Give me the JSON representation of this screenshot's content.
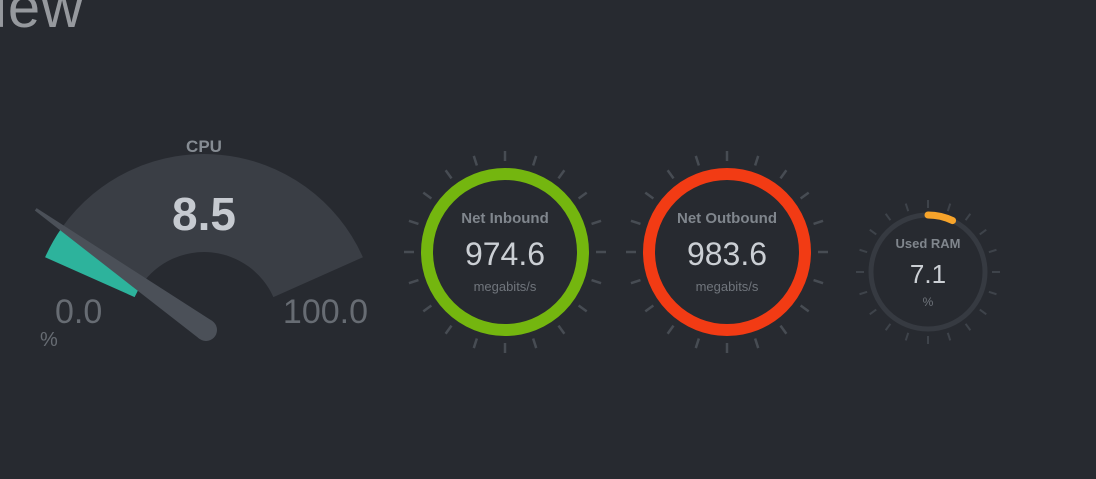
{
  "page": {
    "title_visible": "iew"
  },
  "chart_data": [
    {
      "type": "gauge",
      "title": "CPU",
      "value": 8.5,
      "min": 0.0,
      "max": 100.0,
      "unit": "%",
      "display": {
        "value": "8.5",
        "min": "0.0",
        "max": "100.0",
        "unit": "%"
      },
      "layout": {
        "arc_span_degrees": 132,
        "needle": true
      },
      "colors": {
        "fill": "#2db39c",
        "track": "#3a3e45",
        "needle": "#4b5058"
      }
    },
    {
      "type": "circle-gauge",
      "title": "Net Inbound",
      "value": 974.6,
      "unit": "megabits/s",
      "percent": 100,
      "display": {
        "value": "974.6"
      },
      "colors": {
        "ring": "#74b60f"
      }
    },
    {
      "type": "circle-gauge",
      "title": "Net Outbound",
      "value": 983.6,
      "unit": "megabits/s",
      "percent": 100,
      "display": {
        "value": "983.6"
      },
      "colors": {
        "ring": "#f23b14"
      }
    },
    {
      "type": "circle-gauge",
      "title": "Used RAM",
      "value": 7.1,
      "unit": "%",
      "percent": 7.1,
      "display": {
        "value": "7.1"
      },
      "colors": {
        "ring": "#f7a42b",
        "track": "#363a41"
      }
    }
  ]
}
